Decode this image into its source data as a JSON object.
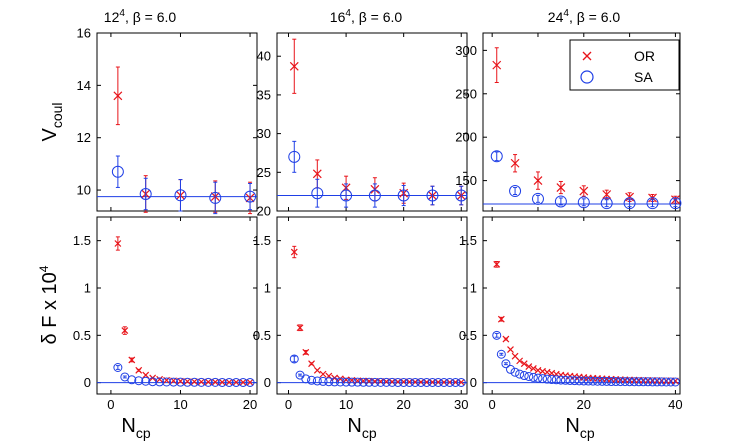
{
  "colors": {
    "OR": "#e8141a",
    "SA": "#1f3fe6",
    "axis": "#000000"
  },
  "legend": {
    "position": "top-right",
    "entries": [
      {
        "label": "OR",
        "marker": "cross"
      },
      {
        "label": "SA",
        "marker": "circle"
      }
    ]
  },
  "ylabels": {
    "top": {
      "main": "V",
      "sub": "coul"
    },
    "bottom": "δ F x 10"
  },
  "xlabel": {
    "main": "N",
    "sub": "cp"
  },
  "panel_titles": [
    {
      "base": "12",
      "sup": "4",
      "rest": ", β = 6.0"
    },
    {
      "base": "16",
      "sup": "4",
      "rest": ", β = 6.0"
    },
    {
      "base": "24",
      "sup": "4",
      "rest": ", β = 6.0"
    }
  ],
  "chart_data": [
    {
      "type": "scatter",
      "title": "12^4, β = 6.0",
      "ylabel": "V_coul",
      "xlabel": "",
      "xlim": [
        -2,
        21
      ],
      "ylim": [
        9.2,
        16
      ],
      "xticks": [
        0,
        10,
        20
      ],
      "yticks": [
        10,
        12,
        14,
        16
      ],
      "hline": {
        "series": "SA",
        "y": 9.75
      },
      "series": [
        {
          "name": "OR",
          "marker": "cross",
          "x": [
            1,
            5,
            10,
            15,
            20
          ],
          "y": [
            13.6,
            9.85,
            9.8,
            9.75,
            9.7
          ],
          "err": [
            1.1,
            0.7,
            0.6,
            0.6,
            0.6
          ]
        },
        {
          "name": "SA",
          "marker": "circle",
          "x": [
            1,
            5,
            10,
            15,
            20
          ],
          "y": [
            10.7,
            9.85,
            9.8,
            9.7,
            9.75
          ],
          "err": [
            0.6,
            0.6,
            0.6,
            0.6,
            0.5
          ]
        }
      ]
    },
    {
      "type": "scatter",
      "title": "16^4, β = 6.0",
      "ylabel": "",
      "xlabel": "",
      "xlim": [
        -2,
        31
      ],
      "ylim": [
        20,
        43
      ],
      "xticks": [
        0,
        10,
        20,
        30
      ],
      "yticks": [
        20,
        25,
        30,
        35,
        40
      ],
      "hline": {
        "series": "SA",
        "y": 22
      },
      "series": [
        {
          "name": "OR",
          "marker": "cross",
          "x": [
            1,
            5,
            10,
            15,
            20,
            25,
            30
          ],
          "y": [
            38.7,
            24.8,
            23.0,
            22.8,
            22.3,
            22.0,
            22.0
          ],
          "err": [
            3.5,
            1.8,
            1.5,
            1.5,
            1.3,
            1.2,
            1.2
          ]
        },
        {
          "name": "SA",
          "marker": "circle",
          "x": [
            1,
            5,
            10,
            15,
            20,
            25,
            30
          ],
          "y": [
            27.0,
            22.3,
            22.0,
            22.0,
            22.0,
            22.0,
            22.0
          ],
          "err": [
            2.0,
            1.8,
            1.5,
            1.5,
            1.3,
            1.2,
            1.2
          ]
        }
      ]
    },
    {
      "type": "scatter",
      "title": "24^4, β = 6.0",
      "ylabel": "",
      "xlabel": "",
      "xlim": [
        -2,
        41
      ],
      "ylim": [
        115,
        320
      ],
      "xticks": [
        0,
        10,
        20,
        30,
        40
      ],
      "yticks": [
        150,
        200,
        250,
        300
      ],
      "hline": {
        "series": "SA",
        "y": 123
      },
      "series": [
        {
          "name": "OR",
          "marker": "cross",
          "x": [
            1,
            5,
            10,
            15,
            20,
            25,
            30,
            35,
            40
          ],
          "y": [
            283,
            170,
            150,
            142,
            138,
            134,
            131,
            130,
            128
          ],
          "err": [
            20,
            10,
            10,
            7,
            6,
            5,
            5,
            4,
            4
          ]
        },
        {
          "name": "SA",
          "marker": "circle",
          "x": [
            1,
            5,
            10,
            15,
            20,
            25,
            30,
            35,
            40
          ],
          "y": [
            178,
            138,
            129,
            126,
            125,
            124,
            124,
            124,
            124
          ],
          "err": [
            5,
            4,
            4,
            4,
            4,
            4,
            4,
            4,
            4
          ]
        }
      ]
    },
    {
      "type": "scatter",
      "title": "",
      "ylabel": "δ F x 10^4",
      "xlabel": "N_cp",
      "xlim": [
        -2,
        21
      ],
      "ylim": [
        -0.12,
        1.75
      ],
      "xticks": [
        0,
        10,
        20
      ],
      "yticks": [
        0,
        0.5,
        1,
        1.5
      ],
      "hline": {
        "series": "SA",
        "y": 0.0
      },
      "series": [
        {
          "name": "OR",
          "marker": "cross",
          "x": [
            1,
            2,
            3,
            4,
            5,
            6,
            7,
            8,
            9,
            10,
            11,
            12,
            13,
            14,
            15,
            16,
            17,
            18,
            19,
            20
          ],
          "y": [
            1.47,
            0.55,
            0.24,
            0.13,
            0.08,
            0.05,
            0.035,
            0.025,
            0.02,
            0.015,
            0.012,
            0.01,
            0.008,
            0.007,
            0.006,
            0.005,
            0.004,
            0.004,
            0.003,
            0.003
          ],
          "err": [
            0.07,
            0.04,
            0.02,
            0.01,
            0,
            0,
            0,
            0,
            0,
            0,
            0,
            0,
            0,
            0,
            0,
            0,
            0,
            0,
            0,
            0
          ]
        },
        {
          "name": "SA",
          "marker": "circle",
          "x": [
            1,
            2,
            3,
            4,
            5,
            6,
            7,
            8,
            9,
            10,
            11,
            12,
            13,
            14,
            15,
            16,
            17,
            18,
            19,
            20
          ],
          "y": [
            0.16,
            0.06,
            0.03,
            0.02,
            0.015,
            0.01,
            0.008,
            0.007,
            0.006,
            0.005,
            0.004,
            0.004,
            0.003,
            0.003,
            0.003,
            0.002,
            0.002,
            0.002,
            0.002,
            0.002
          ],
          "err": [
            0.02,
            0.01,
            0,
            0,
            0,
            0,
            0,
            0,
            0,
            0,
            0,
            0,
            0,
            0,
            0,
            0,
            0,
            0,
            0,
            0
          ]
        }
      ]
    },
    {
      "type": "scatter",
      "title": "",
      "ylabel": "",
      "xlabel": "N_cp",
      "xlim": [
        -2,
        31
      ],
      "ylim": [
        -0.12,
        1.75
      ],
      "xticks": [
        0,
        10,
        20,
        30
      ],
      "yticks": [
        0,
        0.5,
        1,
        1.5
      ],
      "hline": {
        "series": "SA",
        "y": 0.0
      },
      "series": [
        {
          "name": "OR",
          "marker": "cross",
          "x": [
            1,
            2,
            3,
            4,
            5,
            6,
            7,
            8,
            9,
            10,
            11,
            12,
            13,
            14,
            15,
            16,
            17,
            18,
            19,
            20,
            21,
            22,
            23,
            24,
            25,
            26,
            27,
            28,
            29,
            30
          ],
          "y": [
            1.38,
            0.58,
            0.32,
            0.2,
            0.13,
            0.09,
            0.07,
            0.05,
            0.04,
            0.03,
            0.025,
            0.02,
            0.018,
            0.015,
            0.013,
            0.012,
            0.01,
            0.009,
            0.008,
            0.008,
            0.007,
            0.006,
            0.006,
            0.005,
            0.005,
            0.005,
            0.004,
            0.004,
            0.004,
            0.004
          ],
          "err": [
            0.06,
            0.03,
            0.02,
            0.01,
            0,
            0,
            0,
            0,
            0,
            0,
            0,
            0,
            0,
            0,
            0,
            0,
            0,
            0,
            0,
            0,
            0,
            0,
            0,
            0,
            0,
            0,
            0,
            0,
            0,
            0
          ]
        },
        {
          "name": "SA",
          "marker": "circle",
          "x": [
            1,
            2,
            3,
            4,
            5,
            6,
            7,
            8,
            9,
            10,
            11,
            12,
            13,
            14,
            15,
            16,
            17,
            18,
            19,
            20,
            21,
            22,
            23,
            24,
            25,
            26,
            27,
            28,
            29,
            30
          ],
          "y": [
            0.25,
            0.08,
            0.04,
            0.025,
            0.018,
            0.013,
            0.01,
            0.008,
            0.007,
            0.006,
            0.005,
            0.005,
            0.004,
            0.004,
            0.003,
            0.003,
            0.003,
            0.003,
            0.002,
            0.002,
            0.002,
            0.002,
            0.002,
            0.002,
            0.002,
            0.002,
            0.002,
            0.002,
            0.002,
            0.002
          ],
          "err": [
            0.03,
            0.01,
            0,
            0,
            0,
            0,
            0,
            0,
            0,
            0,
            0,
            0,
            0,
            0,
            0,
            0,
            0,
            0,
            0,
            0,
            0,
            0,
            0,
            0,
            0,
            0,
            0,
            0,
            0,
            0
          ]
        }
      ]
    },
    {
      "type": "scatter",
      "title": "",
      "ylabel": "",
      "xlabel": "N_cp",
      "xlim": [
        -2,
        41
      ],
      "ylim": [
        -0.12,
        1.75
      ],
      "xticks": [
        0,
        20,
        40
      ],
      "yticks": [
        0,
        0.5,
        1,
        1.5
      ],
      "hline": {
        "series": "SA",
        "y": 0.0
      },
      "series": [
        {
          "name": "OR",
          "marker": "cross",
          "x": [
            1,
            2,
            3,
            4,
            5,
            6,
            7,
            8,
            9,
            10,
            11,
            12,
            13,
            14,
            15,
            16,
            17,
            18,
            19,
            20,
            21,
            22,
            23,
            24,
            25,
            26,
            27,
            28,
            29,
            30,
            31,
            32,
            33,
            34,
            35,
            36,
            37,
            38,
            39,
            40
          ],
          "y": [
            1.25,
            0.67,
            0.46,
            0.35,
            0.28,
            0.23,
            0.2,
            0.17,
            0.15,
            0.13,
            0.12,
            0.11,
            0.1,
            0.09,
            0.08,
            0.075,
            0.07,
            0.065,
            0.06,
            0.055,
            0.05,
            0.047,
            0.044,
            0.041,
            0.039,
            0.036,
            0.034,
            0.032,
            0.03,
            0.029,
            0.027,
            0.026,
            0.025,
            0.024,
            0.023,
            0.022,
            0.021,
            0.02,
            0.019,
            0.018
          ],
          "err": [
            0.03,
            0.02,
            0.01,
            0,
            0,
            0,
            0,
            0,
            0,
            0,
            0,
            0,
            0,
            0,
            0,
            0,
            0,
            0,
            0,
            0,
            0,
            0,
            0,
            0,
            0,
            0,
            0,
            0,
            0,
            0,
            0,
            0,
            0,
            0,
            0,
            0,
            0,
            0,
            0,
            0
          ]
        },
        {
          "name": "SA",
          "marker": "circle",
          "x": [
            1,
            2,
            3,
            4,
            5,
            6,
            7,
            8,
            9,
            10,
            11,
            12,
            13,
            14,
            15,
            16,
            17,
            18,
            19,
            20,
            21,
            22,
            23,
            24,
            25,
            26,
            27,
            28,
            29,
            30,
            31,
            32,
            33,
            34,
            35,
            36,
            37,
            38,
            39,
            40
          ],
          "y": [
            0.5,
            0.3,
            0.2,
            0.14,
            0.11,
            0.09,
            0.075,
            0.065,
            0.055,
            0.048,
            0.042,
            0.037,
            0.033,
            0.03,
            0.027,
            0.025,
            0.023,
            0.021,
            0.019,
            0.018,
            0.017,
            0.016,
            0.015,
            0.014,
            0.013,
            0.012,
            0.012,
            0.011,
            0.011,
            0.01,
            0.01,
            0.009,
            0.009,
            0.009,
            0.008,
            0.008,
            0.008,
            0.007,
            0.007,
            0.007
          ],
          "err": [
            0.02,
            0.01,
            0.01,
            0,
            0,
            0,
            0,
            0,
            0,
            0,
            0,
            0,
            0,
            0,
            0,
            0,
            0,
            0,
            0,
            0,
            0,
            0,
            0,
            0,
            0,
            0,
            0,
            0,
            0,
            0,
            0,
            0,
            0,
            0,
            0,
            0,
            0,
            0,
            0,
            0
          ]
        }
      ]
    }
  ]
}
